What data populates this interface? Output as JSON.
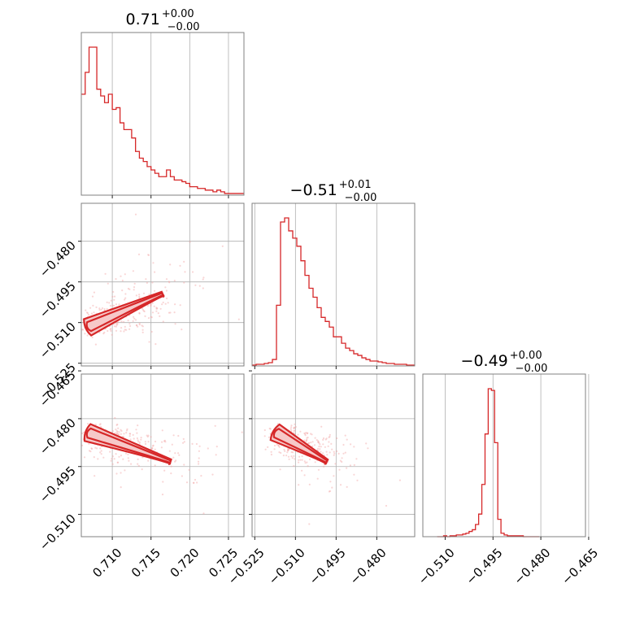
{
  "chart_data": [
    {
      "type": "histogram",
      "panel": "p00",
      "title": {
        "main": "0.71",
        "sup": "+0.00",
        "sub": "−0.00"
      },
      "xlim": [
        0.706,
        0.727
      ],
      "xticks": [
        0.71,
        0.715,
        0.72,
        0.725
      ],
      "xticklabels_shown": false,
      "bins": {
        "start": 0.706,
        "width": 0.0005,
        "counts": [
          60,
          73,
          88,
          88,
          63,
          59,
          55,
          60,
          51,
          52,
          43,
          39,
          39,
          34,
          26,
          22,
          20,
          17,
          15,
          13,
          11,
          11,
          15,
          11,
          9,
          9,
          8,
          7,
          5,
          5,
          4,
          4,
          3,
          3,
          2,
          3,
          2,
          1,
          1,
          1,
          1,
          1
        ]
      }
    },
    {
      "type": "scatter-contour",
      "panel": "p10",
      "xlim": [
        0.706,
        0.727
      ],
      "ylim": [
        -0.526,
        -0.466
      ],
      "xticks": [
        0.71,
        0.715,
        0.72,
        0.725
      ],
      "xticklabels_shown": false,
      "yticks": [
        -0.48,
        -0.495,
        -0.51,
        -0.525
      ],
      "yticklabels": [
        "−0.480",
        "−0.495",
        "−0.510",
        "−0.525"
      ]
    },
    {
      "type": "histogram",
      "panel": "p11",
      "title": {
        "main": "−0.51",
        "sup": "+0.01",
        "sub": "−0.00"
      },
      "xlim": [
        -0.526,
        -0.466
      ],
      "xticks": [
        -0.525,
        -0.51,
        -0.495,
        -0.48
      ],
      "xticklabels_shown": false,
      "bins": {
        "start": -0.526,
        "width": 0.0015,
        "counts": [
          1,
          2,
          2,
          3,
          4,
          8,
          75,
          178,
          183,
          167,
          158,
          148,
          130,
          112,
          96,
          85,
          72,
          60,
          55,
          48,
          36,
          36,
          28,
          22,
          19,
          15,
          13,
          10,
          8,
          6,
          6,
          5,
          4,
          3,
          3,
          2,
          2,
          2,
          1,
          1
        ]
      }
    },
    {
      "type": "scatter-contour",
      "panel": "p20",
      "xlim": [
        0.706,
        0.727
      ],
      "ylim": [
        -0.517,
        -0.466
      ],
      "xticks": [
        0.71,
        0.715,
        0.72,
        0.725
      ],
      "xticklabels": [
        "0.710",
        "0.715",
        "0.720",
        "0.725"
      ],
      "yticks": [
        -0.465,
        -0.48,
        -0.495,
        -0.51
      ],
      "yticklabels": [
        "−0.465",
        "−0.480",
        "−0.495",
        "−0.510"
      ]
    },
    {
      "type": "scatter-contour",
      "panel": "p21",
      "xlim": [
        -0.526,
        -0.466
      ],
      "ylim": [
        -0.517,
        -0.466
      ],
      "xticks": [
        -0.525,
        -0.51,
        -0.495,
        -0.48
      ],
      "xticklabels": [
        "−0.525",
        "−0.510",
        "−0.495",
        "−0.480"
      ],
      "yticks": [
        -0.465,
        -0.48,
        -0.495,
        -0.51
      ],
      "yticklabels_shown": false
    },
    {
      "type": "histogram",
      "panel": "p22",
      "title": {
        "main": "−0.49",
        "sup": "+0.00",
        "sub": "−0.00"
      },
      "xlim": [
        -0.517,
        -0.466
      ],
      "xticks": [
        -0.51,
        -0.495,
        -0.48,
        -0.465
      ],
      "xticklabels": [
        "−0.510",
        "−0.495",
        "−0.480",
        "−0.465"
      ],
      "bins": {
        "start": -0.5125,
        "width": 0.001,
        "counts": [
          0,
          0,
          1,
          0,
          1,
          1,
          2,
          2,
          3,
          4,
          6,
          8,
          14,
          26,
          60,
          118,
          170,
          168,
          108,
          20,
          4,
          2,
          1,
          1,
          1,
          1,
          1,
          0,
          0,
          0,
          0,
          0
        ]
      }
    }
  ],
  "colors": {
    "series": "#d62728",
    "fill": "#f6c9c9",
    "points": "#f2a3a3",
    "frame": "#808080",
    "grid": "#b0b0b0"
  }
}
